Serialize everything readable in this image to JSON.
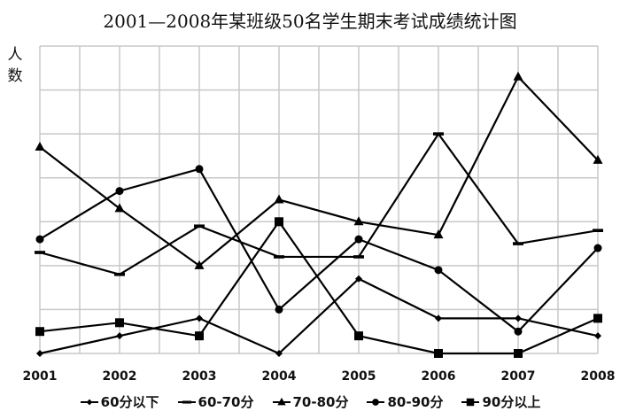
{
  "chart_data": {
    "type": "line",
    "title": "2001—2008年某班级50名学生期末考试成绩统计图",
    "xlabel": "",
    "ylabel": "人数",
    "categories": [
      "2001",
      "2002",
      "2003",
      "2004",
      "2005",
      "2006",
      "2007",
      "2008"
    ],
    "ylim": [
      0,
      35
    ],
    "y_grid_step": 5,
    "y_tick_labels_shown": false,
    "grid": true,
    "legend_position": "bottom",
    "series": [
      {
        "name": "60分以下",
        "marker": "diamond",
        "values": [
          0,
          2,
          4,
          0,
          8.5,
          4,
          4,
          2
        ]
      },
      {
        "name": "60-70分",
        "marker": "dash",
        "values": [
          11.5,
          9,
          14.5,
          11,
          11,
          25,
          12.5,
          14
        ]
      },
      {
        "name": "70-80分",
        "marker": "triangle",
        "values": [
          23.5,
          16.5,
          10,
          17.5,
          15,
          13.5,
          31.5,
          22
        ]
      },
      {
        "name": "80-90分",
        "marker": "circle",
        "values": [
          13,
          18.5,
          21,
          5,
          13,
          9.5,
          2.5,
          12
        ]
      },
      {
        "name": "90分以上",
        "marker": "square",
        "values": [
          2.5,
          3.5,
          2,
          15,
          2,
          0,
          0,
          4
        ]
      }
    ]
  },
  "colors": {
    "line": "#000000",
    "grid": "#c8c8c8",
    "background": "#ffffff"
  },
  "ylabel_chars": [
    "人",
    "数"
  ]
}
